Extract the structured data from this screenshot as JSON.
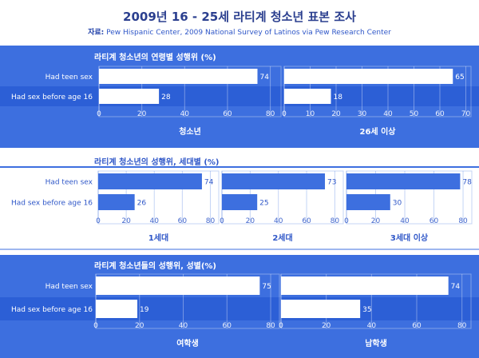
{
  "header": {
    "title": "2009년 16 - 25세 라티계 청소년 표본 조사",
    "source_label": "자료:",
    "source_text": "Pew Hispanic Center, 2009 National Survey of Latinos via Pew Research Center"
  },
  "colors": {
    "band": "#3d6fdf",
    "bar": "#3d6fdf",
    "row_highlight": "#2c5fd6",
    "text_light": "#ffffff",
    "text_dark": "#2f57c8"
  },
  "chart_data": [
    {
      "type": "bar",
      "orientation": "horizontal",
      "title": "라티계 청소년의 연령별 성행위 (%)",
      "categories": [
        "Had teen sex",
        "Had sex before age 16"
      ],
      "panels": [
        {
          "name": "청소년",
          "values": [
            74,
            28
          ],
          "xlim": [
            0,
            85
          ],
          "xticks": [
            0,
            20,
            40,
            60,
            80
          ]
        },
        {
          "name": "26세 이상",
          "values": [
            65,
            18
          ],
          "xlim": [
            0,
            72
          ],
          "xticks": [
            0,
            10,
            20,
            30,
            40,
            50,
            60,
            70
          ]
        }
      ],
      "theme": "blue"
    },
    {
      "type": "bar",
      "orientation": "horizontal",
      "title": "라티계 청소년의 성행위, 세대별 (%)",
      "categories": [
        "Had teen sex",
        "Had sex before age 16"
      ],
      "panels": [
        {
          "name": "1세대",
          "values": [
            74,
            26
          ],
          "xlim": [
            0,
            86
          ],
          "xticks": [
            0,
            20,
            40,
            60,
            80
          ]
        },
        {
          "name": "2세대",
          "values": [
            73,
            25
          ],
          "xlim": [
            0,
            86
          ],
          "xticks": [
            0,
            20,
            40,
            60,
            80
          ]
        },
        {
          "name": "3세대 이상",
          "values": [
            78,
            30
          ],
          "xlim": [
            0,
            86
          ],
          "xticks": [
            0,
            20,
            40,
            60,
            80
          ]
        }
      ],
      "theme": "white"
    },
    {
      "type": "bar",
      "orientation": "horizontal",
      "title": "라티계 청소년들의 성행위, 성별(%)",
      "categories": [
        "Had teen sex",
        "Had sex before age 16"
      ],
      "panels": [
        {
          "name": "여학생",
          "values": [
            75,
            19
          ],
          "xlim": [
            0,
            84
          ],
          "xticks": [
            0,
            20,
            40,
            60,
            80
          ]
        },
        {
          "name": "남학생",
          "values": [
            74,
            35
          ],
          "xlim": [
            0,
            84
          ],
          "xticks": [
            0,
            20,
            40,
            60,
            80
          ]
        }
      ],
      "theme": "blue"
    }
  ]
}
